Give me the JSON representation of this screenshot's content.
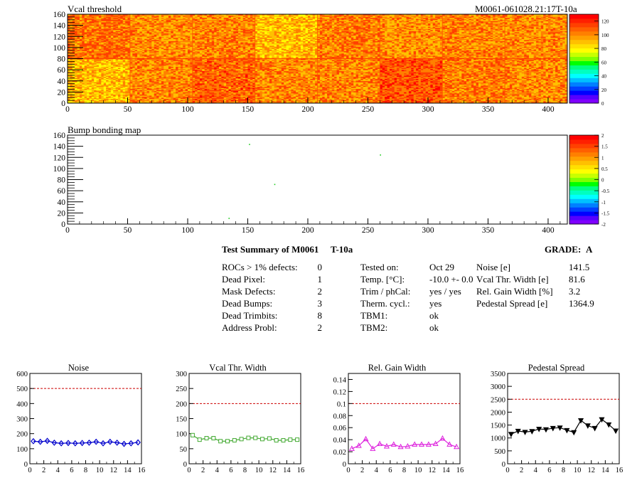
{
  "heading_id": "M0061-061028.21:17T-10a",
  "summary": {
    "title_label": "Test Summary of M0061",
    "tag": "T-10a",
    "grade_label": "GRADE:",
    "grade": "A",
    "defects": [
      {
        "label": "ROCs > 1% defects:",
        "value": "0"
      },
      {
        "label": "Dead Pixel:",
        "value": "1"
      },
      {
        "label": "Mask Defects:",
        "value": "2"
      },
      {
        "label": "Dead Bumps:",
        "value": "3"
      },
      {
        "label": "Dead Trimbits:",
        "value": "8"
      },
      {
        "label": "Address Probl:",
        "value": "2"
      }
    ],
    "conditions": [
      {
        "label": "Tested on:",
        "value": "Oct 29"
      },
      {
        "label": "Temp. [°C]:",
        "value": "-10.0 +- 0.0"
      },
      {
        "label": "Trim / phCal:",
        "value": "yes / yes"
      },
      {
        "label": "Therm. cycl.:",
        "value": "yes"
      },
      {
        "label": "TBM1:",
        "value": "ok"
      },
      {
        "label": "TBM2:",
        "value": "ok"
      }
    ],
    "results": [
      {
        "label": "Noise [e]",
        "value": "141.5"
      },
      {
        "label": "Vcal Thr. Width [e]",
        "value": "81.6"
      },
      {
        "label": "Rel. Gain Width [%]",
        "value": "3.2"
      },
      {
        "label": "Pedestal Spread [e]",
        "value": "1364.9"
      }
    ]
  },
  "chart_data": [
    {
      "type": "heatmap",
      "title": "Vcal threshold",
      "x_ticks": [
        "0",
        "50",
        "100",
        "150",
        "200",
        "250",
        "300",
        "350",
        "400"
      ],
      "y_ticks": [
        "0",
        "20",
        "40",
        "60",
        "80",
        "100",
        "120",
        "140",
        "160"
      ],
      "xlim": [
        0,
        416
      ],
      "ylim": [
        0,
        160
      ],
      "colorbar_ticks": [
        "0",
        "20",
        "40",
        "60",
        "80",
        "100",
        "120"
      ],
      "zlim": [
        0,
        130
      ],
      "roc_mean_top": [
        108,
        103,
        104,
        96,
        106,
        102,
        105,
        103
      ],
      "roc_mean_bottom": [
        96,
        104,
        110,
        104,
        104,
        112,
        106,
        104
      ],
      "colors": [
        "#7f00ff",
        "#0000ff",
        "#0080ff",
        "#00c0ff",
        "#00ffc0",
        "#00ff00",
        "#80ff00",
        "#c8ff00",
        "#ffff00",
        "#ffc000",
        "#ff8000",
        "#ff4000",
        "#ff0000"
      ]
    },
    {
      "type": "heatmap",
      "title": "Bump bonding map",
      "x_ticks": [
        "0",
        "50",
        "100",
        "150",
        "200",
        "250",
        "300",
        "350",
        "400"
      ],
      "y_ticks": [
        "0",
        "20",
        "40",
        "60",
        "80",
        "100",
        "120",
        "140",
        "160"
      ],
      "xlim": [
        0,
        416
      ],
      "ylim": [
        0,
        160
      ],
      "colorbar_ticks": [
        "-2",
        "-1.5",
        "-1",
        "-0.5",
        "0",
        "0.5",
        "1",
        "1.5",
        "2"
      ],
      "zlim": [
        -2,
        2
      ],
      "points": [
        [
          151,
          143
        ],
        [
          260,
          124
        ],
        [
          172,
          71
        ],
        [
          134,
          10
        ]
      ]
    },
    {
      "type": "line",
      "title": "Noise",
      "x": [
        0,
        1,
        2,
        3,
        4,
        5,
        6,
        7,
        8,
        9,
        10,
        11,
        12,
        13,
        14,
        15
      ],
      "values": [
        150,
        146,
        152,
        140,
        136,
        138,
        136,
        138,
        140,
        146,
        136,
        146,
        140,
        132,
        136,
        142
      ],
      "xlim": [
        0,
        16
      ],
      "ylim": [
        0,
        600
      ],
      "x_ticks": [
        "0",
        "2",
        "4",
        "6",
        "8",
        "10",
        "12",
        "14",
        "16"
      ],
      "y_ticks": [
        "0",
        "100",
        "200",
        "300",
        "400",
        "500",
        "600"
      ],
      "threshold": 500,
      "color": "#0000cc",
      "marker": "diamond"
    },
    {
      "type": "line",
      "title": "Vcal Thr. Width",
      "x": [
        0,
        1,
        2,
        3,
        4,
        5,
        6,
        7,
        8,
        9,
        10,
        11,
        12,
        13,
        14,
        15
      ],
      "values": [
        95,
        80,
        85,
        85,
        75,
        75,
        78,
        82,
        86,
        86,
        82,
        84,
        78,
        78,
        80,
        80
      ],
      "xlim": [
        0,
        16
      ],
      "ylim": [
        0,
        300
      ],
      "x_ticks": [
        "0",
        "2",
        "4",
        "6",
        "8",
        "10",
        "12",
        "14",
        "16"
      ],
      "y_ticks": [
        "0",
        "50",
        "100",
        "150",
        "200",
        "250",
        "300"
      ],
      "threshold": 200,
      "color": "#44aa33",
      "marker": "square"
    },
    {
      "type": "line",
      "title": "Rel. Gain Width",
      "x": [
        0,
        1,
        2,
        3,
        4,
        5,
        6,
        7,
        8,
        9,
        10,
        11,
        12,
        13,
        14,
        15
      ],
      "values": [
        0.025,
        0.03,
        0.041,
        0.025,
        0.033,
        0.029,
        0.032,
        0.028,
        0.029,
        0.032,
        0.032,
        0.032,
        0.033,
        0.042,
        0.032,
        0.028
      ],
      "xlim": [
        0,
        16
      ],
      "ylim": [
        0,
        0.15
      ],
      "x_ticks": [
        "0",
        "2",
        "4",
        "6",
        "8",
        "10",
        "12",
        "14",
        "16"
      ],
      "y_ticks": [
        "0",
        "0.02",
        "0.04",
        "0.06",
        "0.08",
        "0.1",
        "0.12",
        "0.14"
      ],
      "threshold": 0.1,
      "color": "#dd22dd",
      "marker": "triangle-up"
    },
    {
      "type": "line",
      "title": "Pedestal Spread",
      "x": [
        0,
        1,
        2,
        3,
        4,
        5,
        6,
        7,
        8,
        9,
        10,
        11,
        12,
        13,
        14,
        15
      ],
      "values": [
        1150,
        1270,
        1230,
        1260,
        1350,
        1330,
        1380,
        1400,
        1300,
        1220,
        1680,
        1480,
        1380,
        1720,
        1520,
        1280
      ],
      "xlim": [
        0,
        16
      ],
      "ylim": [
        0,
        3500
      ],
      "x_ticks": [
        "0",
        "2",
        "4",
        "6",
        "8",
        "10",
        "12",
        "14",
        "16"
      ],
      "y_ticks": [
        "0",
        "500",
        "1000",
        "1500",
        "2000",
        "2500",
        "3000",
        "3500"
      ],
      "threshold": 2500,
      "color": "#000000",
      "marker": "triangle-down"
    }
  ]
}
